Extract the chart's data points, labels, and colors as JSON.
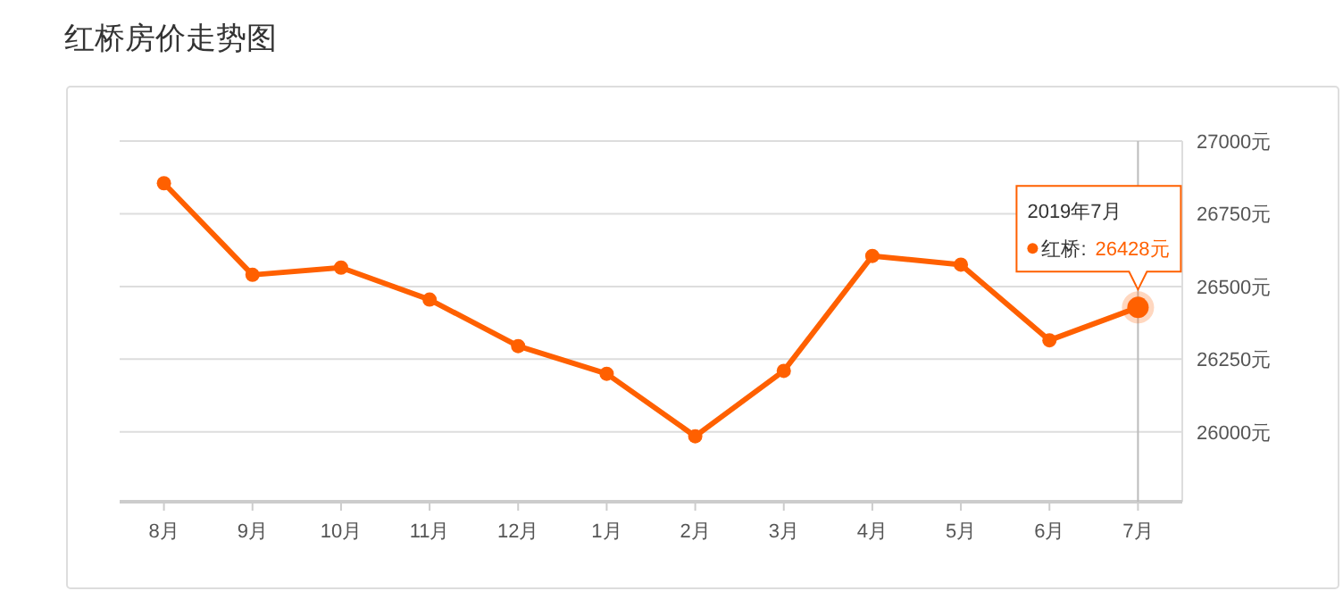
{
  "chart_data": {
    "type": "line",
    "title": "红桥房价走势图",
    "categories": [
      "8月",
      "9月",
      "10月",
      "11月",
      "12月",
      "1月",
      "2月",
      "3月",
      "4月",
      "5月",
      "6月",
      "7月"
    ],
    "legend": "top right",
    "series": [
      {
        "name": "红桥:",
        "color": "#ff6000",
        "values": [
          26855,
          26540,
          26565,
          26455,
          26295,
          26200,
          25985,
          26210,
          26605,
          26575,
          26315,
          26428
        ],
        "value_labels": [
          null,
          null,
          null,
          null,
          null,
          null,
          null,
          null,
          null,
          null,
          null,
          "26428元"
        ]
      }
    ],
    "ylim": [
      25760,
      27000
    ],
    "yticks": [
      {
        "value": 26000,
        "label": "26000元"
      },
      {
        "value": 26250,
        "label": "26250元"
      },
      {
        "value": 26500,
        "label": "26500元"
      },
      {
        "value": 26750,
        "label": "26750元"
      },
      {
        "value": 27000,
        "label": "27000元"
      }
    ],
    "grid": "y",
    "marker": "circle",
    "line_style": "solid",
    "ref_lines": [
      {
        "axis": "x",
        "value": "7月",
        "label": null,
        "color": "#bbbbbb"
      }
    ],
    "annotations": [
      "2019年7月"
    ]
  }
}
